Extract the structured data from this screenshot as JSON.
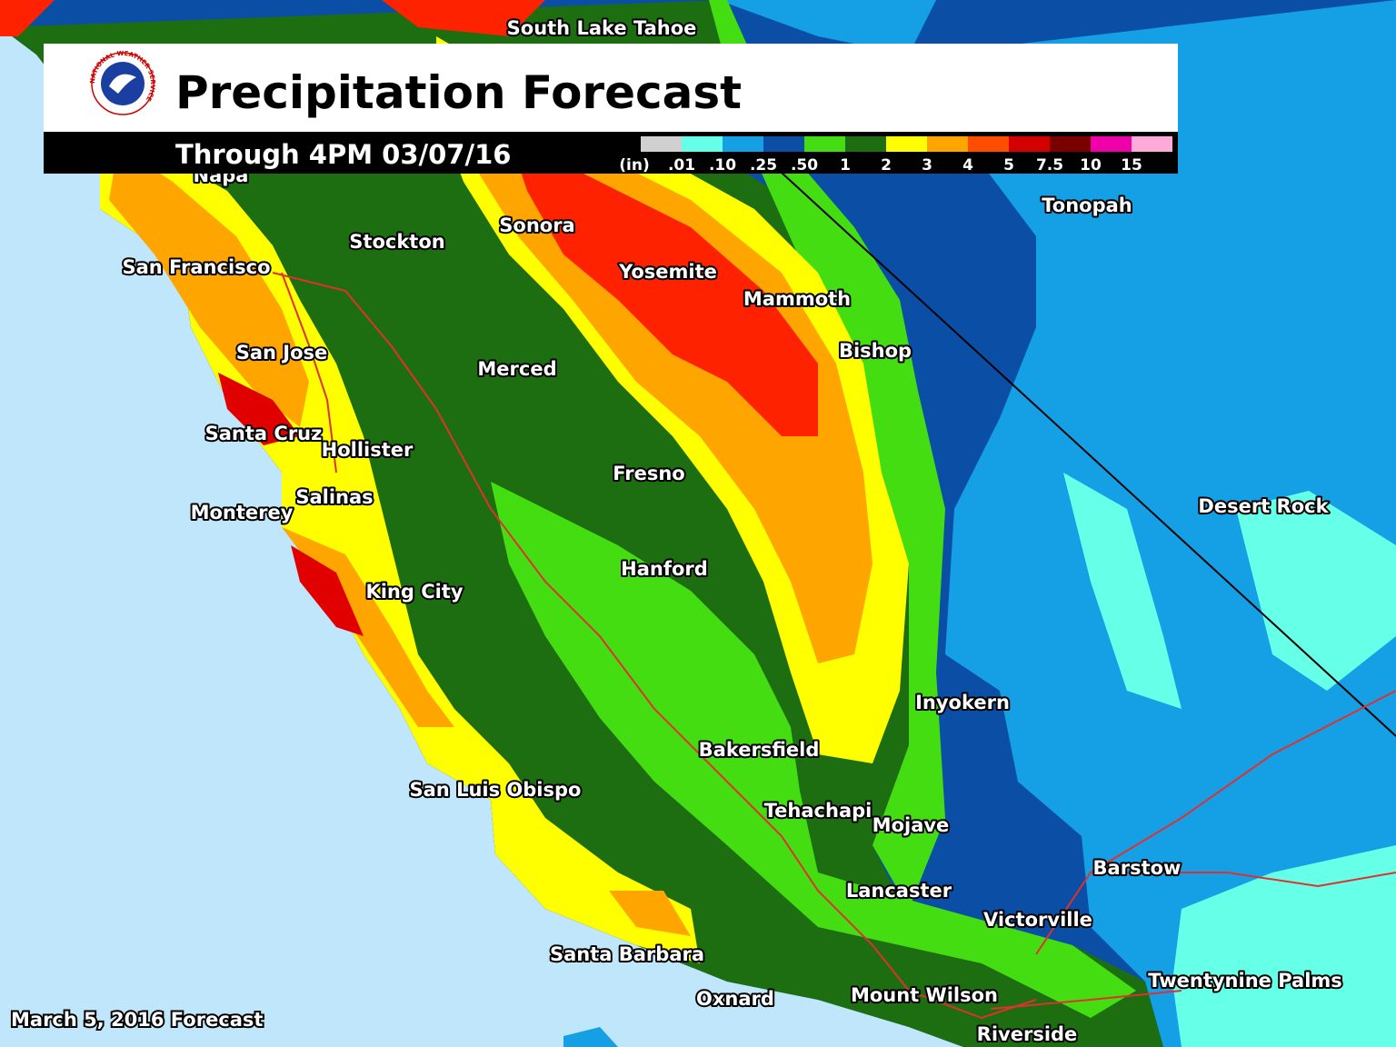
{
  "header": {
    "title": "Precipitation Forecast",
    "subtitle": "Through 4PM 03/07/16",
    "logo_text": "NATIONAL WEATHER SERVICE"
  },
  "legend": {
    "unit": "(in)",
    "colors": [
      "#d0d0d0",
      "#66ffe8",
      "#15a0e6",
      "#0b4ea6",
      "#44dd12",
      "#1c6e10",
      "#ffff00",
      "#ffa500",
      "#ff4d00",
      "#d40000",
      "#7a0000",
      "#ee00aa",
      "#ffaad8"
    ],
    "labels": [
      ".01",
      ".10",
      ".25",
      ".50",
      "1",
      "2",
      "3",
      "4",
      "5",
      "7.5",
      "10",
      "15"
    ]
  },
  "cities": [
    "South Lake Tahoe",
    "Napa",
    "Stockton",
    "Sonora",
    "San Francisco",
    "Yosemite",
    "Mammoth",
    "Tonopah",
    "Bishop",
    "San Jose",
    "Merced",
    "Santa Cruz",
    "Hollister",
    "Fresno",
    "Desert Rock",
    "Salinas",
    "Monterey",
    "Hanford",
    "King City",
    "Inyokern",
    "Bakersfield",
    "San Luis Obispo",
    "Tehachapi",
    "Mojave",
    "Barstow",
    "Lancaster",
    "Victorville",
    "Santa Barbara",
    "Twentynine Palms",
    "Oxnard",
    "Mount Wilson",
    "Riverside"
  ],
  "footer": "March 5, 2016 Forecast"
}
